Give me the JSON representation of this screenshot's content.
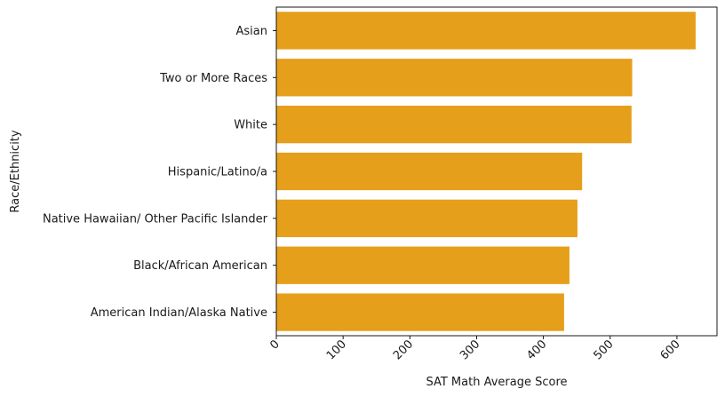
{
  "chart_data": {
    "type": "bar",
    "orientation": "horizontal",
    "title": "",
    "xlabel": "SAT Math Average Score",
    "ylabel": "Race/Ethnicity",
    "categories": [
      "Asian",
      "Two or More Races",
      "White",
      "Hispanic/Latino/a",
      "Native Hawaiian/ Other Pacific Islander",
      "Black/African American",
      "American Indian/Alaska Native"
    ],
    "values": [
      628,
      533,
      532,
      458,
      451,
      439,
      431
    ],
    "xlim": [
      0,
      660
    ],
    "xticks": [
      0,
      100,
      200,
      300,
      400,
      500,
      600
    ],
    "bar_color": "#E69F1A",
    "grid": false,
    "legend": "none"
  }
}
